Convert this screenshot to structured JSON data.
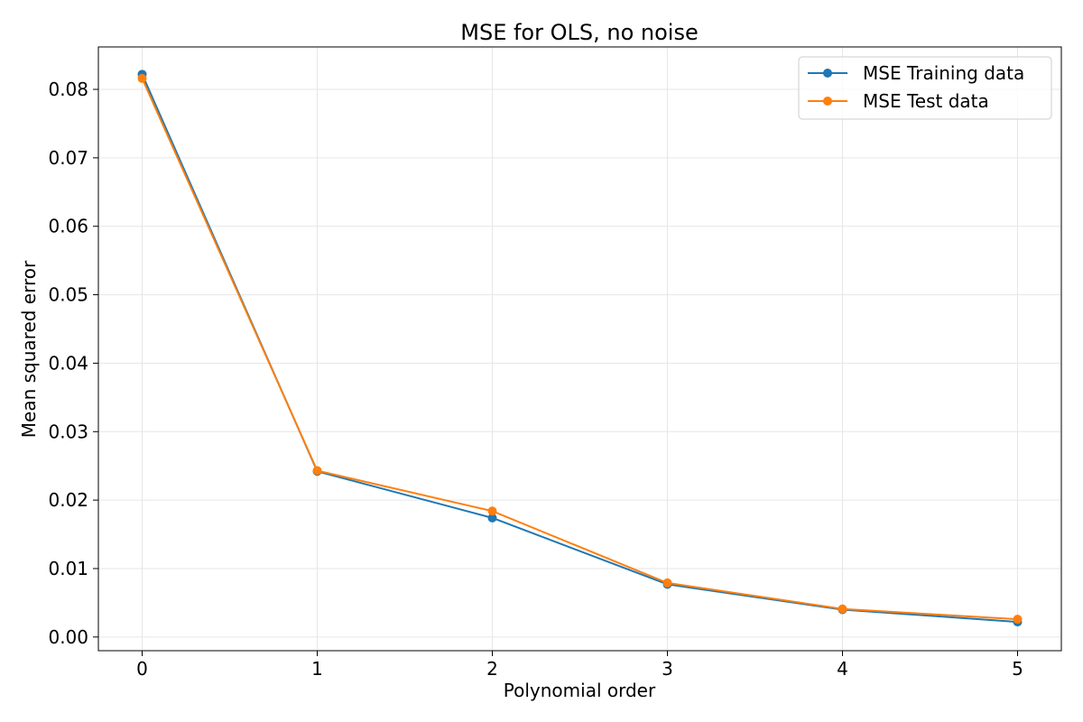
{
  "chart_data": {
    "type": "line",
    "title": "MSE for OLS, no noise",
    "xlabel": "Polynomial order",
    "ylabel": "Mean squared error",
    "x": [
      0,
      1,
      2,
      3,
      4,
      5
    ],
    "xlim": [
      -0.25,
      5.25
    ],
    "ylim": [
      -0.002,
      0.0862
    ],
    "xticks": [
      0,
      1,
      2,
      3,
      4,
      5
    ],
    "yticks": [
      0.0,
      0.01,
      0.02,
      0.03,
      0.04,
      0.05,
      0.06,
      0.07,
      0.08
    ],
    "ytick_labels": [
      "0.00",
      "0.01",
      "0.02",
      "0.03",
      "0.04",
      "0.05",
      "0.06",
      "0.07",
      "0.08"
    ],
    "grid": true,
    "legend_position": "top-right",
    "series": [
      {
        "name": "MSE Training data",
        "color": "#1f77b4",
        "marker": "circle",
        "values": [
          0.0822,
          0.0242,
          0.0174,
          0.0077,
          0.004,
          0.0022
        ]
      },
      {
        "name": "MSE Test data",
        "color": "#ff7f0e",
        "marker": "circle",
        "values": [
          0.0816,
          0.0243,
          0.0184,
          0.0079,
          0.0041,
          0.0026
        ]
      }
    ]
  }
}
